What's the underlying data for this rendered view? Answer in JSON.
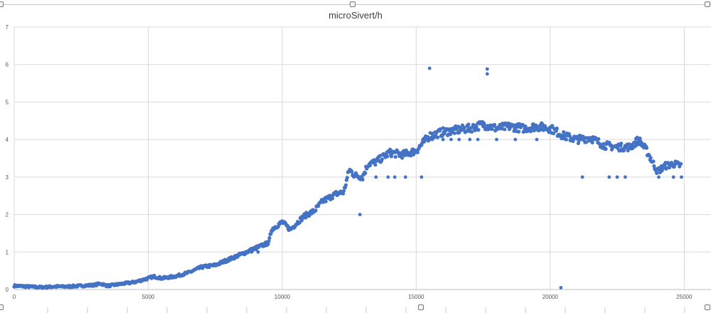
{
  "chart_data": {
    "type": "scatter",
    "title": "microSivert/h",
    "xlabel": "",
    "ylabel": "",
    "xlim": [
      0,
      26000
    ],
    "ylim": [
      0,
      7
    ],
    "grid": true,
    "legend": "none",
    "xticks": [
      0,
      5000,
      10000,
      15000,
      20000,
      25000
    ],
    "yticks": [
      0,
      1,
      2,
      3,
      4,
      5,
      6,
      7
    ],
    "marker_color": "#4472C4",
    "trend_points": [
      [
        0,
        0.1
      ],
      [
        500,
        0.08
      ],
      [
        1000,
        0.06
      ],
      [
        1500,
        0.08
      ],
      [
        2000,
        0.08
      ],
      [
        2500,
        0.1
      ],
      [
        3000,
        0.12
      ],
      [
        3200,
        0.16
      ],
      [
        3500,
        0.1
      ],
      [
        4000,
        0.15
      ],
      [
        4500,
        0.2
      ],
      [
        5000,
        0.3
      ],
      [
        5200,
        0.35
      ],
      [
        5500,
        0.3
      ],
      [
        6000,
        0.35
      ],
      [
        6500,
        0.45
      ],
      [
        7000,
        0.6
      ],
      [
        7500,
        0.65
      ],
      [
        8000,
        0.8
      ],
      [
        8500,
        0.95
      ],
      [
        9000,
        1.1
      ],
      [
        9500,
        1.25
      ],
      [
        9600,
        1.6
      ],
      [
        10000,
        1.8
      ],
      [
        10300,
        1.6
      ],
      [
        10800,
        1.95
      ],
      [
        11200,
        2.1
      ],
      [
        11500,
        2.35
      ],
      [
        12000,
        2.55
      ],
      [
        12300,
        2.6
      ],
      [
        12500,
        3.2
      ],
      [
        12700,
        3.05
      ],
      [
        13000,
        3.0
      ],
      [
        13200,
        3.35
      ],
      [
        13500,
        3.4
      ],
      [
        14000,
        3.65
      ],
      [
        14500,
        3.6
      ],
      [
        15000,
        3.7
      ],
      [
        15300,
        3.95
      ],
      [
        15500,
        4.1
      ],
      [
        16000,
        4.2
      ],
      [
        16500,
        4.25
      ],
      [
        17000,
        4.3
      ],
      [
        17500,
        4.4
      ],
      [
        18000,
        4.3
      ],
      [
        18500,
        4.35
      ],
      [
        19000,
        4.3
      ],
      [
        19500,
        4.35
      ],
      [
        20000,
        4.3
      ],
      [
        20500,
        4.1
      ],
      [
        21000,
        4.0
      ],
      [
        21500,
        4.05
      ],
      [
        22000,
        3.85
      ],
      [
        22500,
        3.8
      ],
      [
        23000,
        3.8
      ],
      [
        23300,
        4.0
      ],
      [
        23600,
        3.7
      ],
      [
        24000,
        3.15
      ],
      [
        24300,
        3.3
      ],
      [
        24600,
        3.35
      ],
      [
        24900,
        3.3
      ]
    ],
    "outliers": [
      [
        8850,
        1.0
      ],
      [
        9100,
        1.0
      ],
      [
        12900,
        2.0
      ],
      [
        13500,
        3.0
      ],
      [
        13950,
        3.0
      ],
      [
        14200,
        3.0
      ],
      [
        14600,
        3.0
      ],
      [
        15200,
        3.0
      ],
      [
        15500,
        5.9
      ],
      [
        15600,
        4.0
      ],
      [
        16000,
        4.0
      ],
      [
        16300,
        4.0
      ],
      [
        16600,
        4.0
      ],
      [
        17000,
        4.0
      ],
      [
        17300,
        4.0
      ],
      [
        17650,
        5.75
      ],
      [
        17650,
        5.88
      ],
      [
        18000,
        4.0
      ],
      [
        18700,
        4.0
      ],
      [
        19500,
        4.0
      ],
      [
        20400,
        0.05
      ],
      [
        21200,
        3.0
      ],
      [
        22200,
        3.0
      ],
      [
        22500,
        3.0
      ],
      [
        22800,
        3.0
      ],
      [
        24050,
        3.0
      ],
      [
        24600,
        3.0
      ],
      [
        24900,
        3.0
      ]
    ]
  }
}
